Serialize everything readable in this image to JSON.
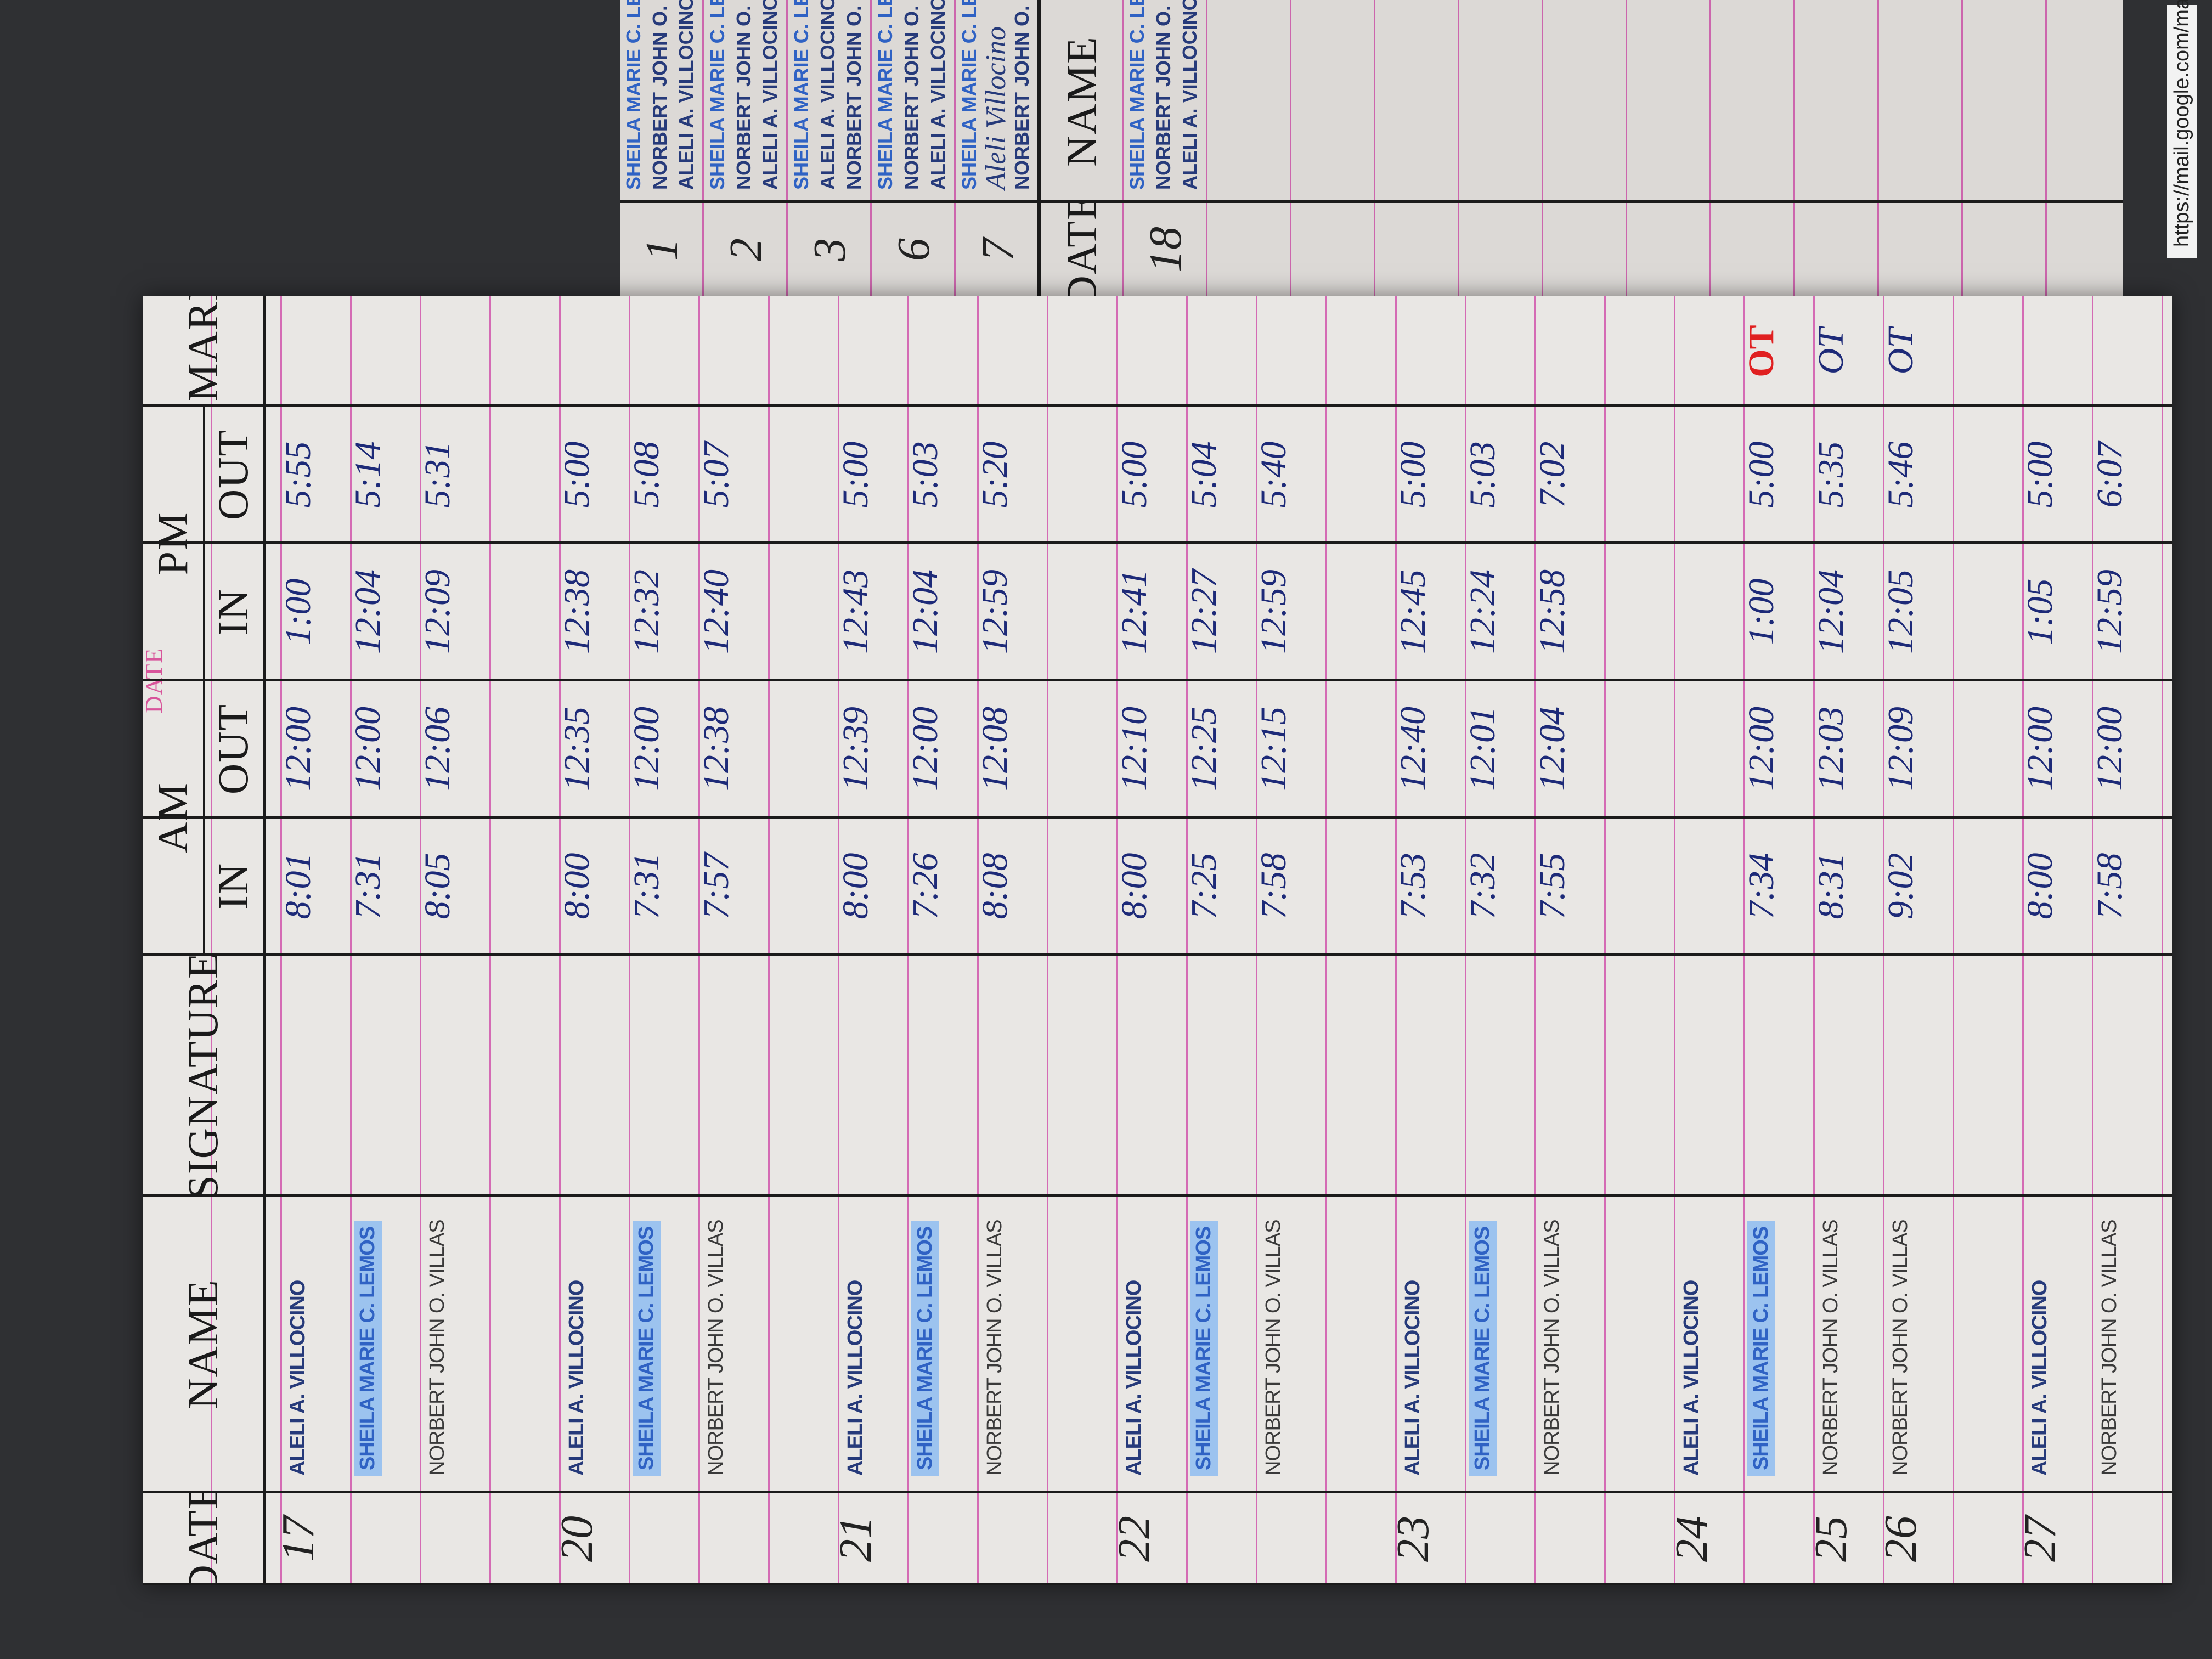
{
  "left_page": {
    "header": {
      "date": "DATE",
      "name": "NAME",
      "signature": "SIGNATURE",
      "am": "AM",
      "pm": "PM",
      "in": "IN",
      "out": "OUT",
      "remarks": "REMARKS",
      "stamp": "DATE"
    },
    "groups": [
      [
        {
          "date": "17",
          "name": "ALELI A. VILLOCINO",
          "times": [
            "8:01",
            "12:00",
            "1:00",
            "5:55"
          ]
        },
        {
          "name": "SHEILA MARIE C. LEMOS",
          "times": [
            "7:31",
            "12:00",
            "12:04",
            "5:14"
          ]
        },
        {
          "name": "NORBERT JOHN O. VILLAS",
          "times": [
            "8:05",
            "12:06",
            "12:09",
            "5:31"
          ]
        }
      ],
      [
        {
          "date": "20",
          "name": "ALELI A. VILLOCINO",
          "times": [
            "8:00",
            "12:35",
            "12:38",
            "5:00"
          ]
        },
        {
          "name": "SHEILA MARIE C. LEMOS",
          "times": [
            "7:31",
            "12:00",
            "12:32",
            "5:08"
          ]
        },
        {
          "name": "NORBERT JOHN O. VILLAS",
          "times": [
            "7:57",
            "12:38",
            "12:40",
            "5:07"
          ]
        }
      ],
      [
        {
          "date": "21",
          "name": "ALELI A. VILLOCINO",
          "times": [
            "8:00",
            "12:39",
            "12:43",
            "5:00"
          ]
        },
        {
          "name": "SHEILA MARIE C. LEMOS",
          "times": [
            "7:26",
            "12:00",
            "12:04",
            "5:03"
          ]
        },
        {
          "name": "NORBERT JOHN O. VILLAS",
          "times": [
            "8:08",
            "12:08",
            "12:59",
            "5:20"
          ]
        }
      ],
      [
        {
          "date": "22",
          "name": "ALELI A. VILLOCINO",
          "times": [
            "8:00",
            "12:10",
            "12:41",
            "5:00"
          ]
        },
        {
          "name": "SHEILA MARIE C. LEMOS",
          "times": [
            "7:25",
            "12:25",
            "12:27",
            "5:04"
          ]
        },
        {
          "name": "NORBERT JOHN O. VILLAS",
          "times": [
            "7:58",
            "12:15",
            "12:59",
            "5:40"
          ]
        }
      ],
      [
        {
          "date": "23",
          "name": "ALELI A. VILLOCINO",
          "times": [
            "7:53",
            "12:40",
            "12:45",
            "5:00"
          ]
        },
        {
          "name": "SHEILA MARIE C. LEMOS",
          "times": [
            "7:32",
            "12:01",
            "12:24",
            "5:03"
          ]
        },
        {
          "name": "NORBERT JOHN O. VILLAS",
          "times": [
            "7:55",
            "12:04",
            "12:58",
            "7:02"
          ]
        }
      ],
      [
        {
          "date": "24",
          "name": "ALELI A. VILLOCINO"
        },
        {
          "name": "SHEILA MARIE C. LEMOS",
          "times": [
            "7:34",
            "12:00",
            "1:00",
            "5:00"
          ],
          "remarks": "OT"
        },
        {
          "date": "25",
          "name": "NORBERT JOHN O. VILLAS",
          "times": [
            "8:31",
            "12:03",
            "12:04",
            "5:35"
          ],
          "remarks": "OT"
        },
        {
          "date": "26",
          "name": "NORBERT JOHN O. VILLAS",
          "times": [
            "9:02",
            "12:09",
            "12:05",
            "5:46"
          ],
          "remarks": "OT"
        }
      ],
      [
        {
          "date": "27",
          "name": "ALELI A. VILLOCINO",
          "times": [
            "8:00",
            "12:00",
            "1:05",
            "5:00"
          ]
        },
        {
          "name": "NORBERT JOHN O. VILLAS",
          "times": [
            "7:58",
            "12:00",
            "12:59",
            "6:07"
          ]
        }
      ]
    ]
  },
  "right_page": {
    "header": {
      "date": "DATE",
      "name": "NAME"
    },
    "rows": [
      {
        "date": "1",
        "names": [
          "SHEILA MARIE C. LEMOS",
          "NORBERT JOHN O. VILLAS",
          "ALELI A. VILLOCINO"
        ]
      },
      {
        "date": "2",
        "names": [
          "SHEILA MARIE C. LEMOS",
          "NORBERT JOHN O. VILLAS",
          "ALELI A. VILLOCINO"
        ]
      },
      {
        "date": "3",
        "names": [
          "SHEILA MARIE C. LEMOS",
          "ALELI A. VILLOCINO",
          "NORBERT JOHN O. VILLAS"
        ]
      },
      {
        "date": "6",
        "names": [
          "SHEILA MARIE C. LEMOS",
          "NORBERT JOHN O. VILLAS",
          "ALELI A. VILLOCINO"
        ]
      },
      {
        "date": "7",
        "names": [
          "SHEILA MARIE C. LEMOS",
          "Aleli Villocino",
          "NORBERT JOHN O. VILLAS"
        ]
      },
      {
        "date": "18",
        "names": [
          "SHEILA MARIE C. LEMOS",
          "NORBERT JOHN O. VILLAS",
          "ALELI A. VILLOCINO"
        ]
      }
    ]
  },
  "browser_url": "https://mail.google.com/mail/u"
}
